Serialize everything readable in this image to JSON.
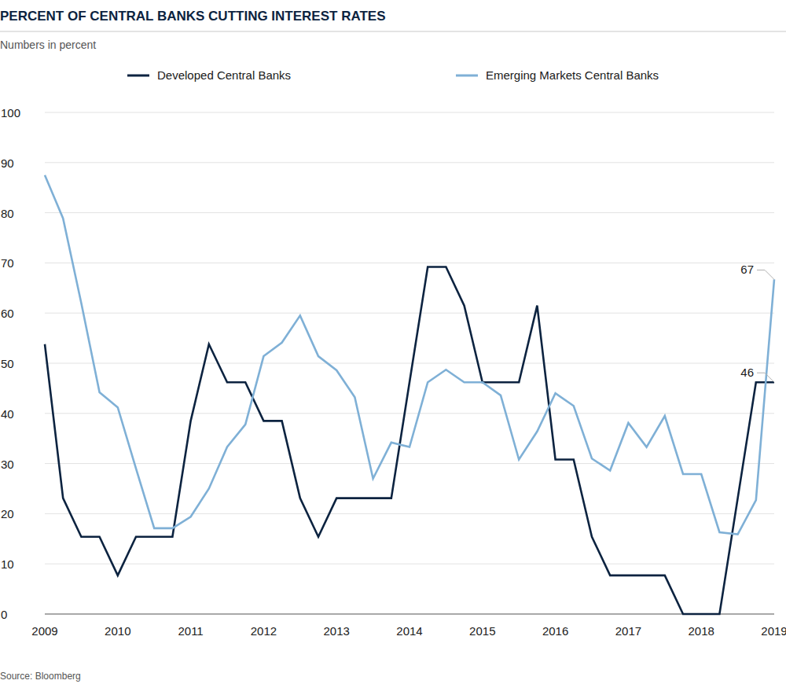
{
  "chart_data": {
    "type": "line",
    "title": "PERCENT OF CENTRAL BANKS CUTTING INTEREST RATES",
    "subtitle": "Numbers in percent",
    "source": "Source:  Bloomberg",
    "x": [
      2009,
      2009.25,
      2009.5,
      2009.75,
      2010,
      2010.25,
      2010.5,
      2010.75,
      2011,
      2011.25,
      2011.5,
      2011.75,
      2012,
      2012.25,
      2012.5,
      2012.75,
      2013,
      2013.25,
      2013.5,
      2013.75,
      2014,
      2014.25,
      2014.5,
      2014.75,
      2015,
      2015.25,
      2015.5,
      2015.75,
      2016,
      2016.25,
      2016.5,
      2016.75,
      2017,
      2017.25,
      2017.5,
      2017.75,
      2018,
      2018.25,
      2018.5,
      2018.75,
      2019
    ],
    "series": [
      {
        "name": "Developed Central Banks",
        "color": "#0c2340",
        "values": [
          53.8,
          23.1,
          15.4,
          15.4,
          7.7,
          15.4,
          15.4,
          15.4,
          38.5,
          53.8,
          46.2,
          46.2,
          38.5,
          38.5,
          23.1,
          15.4,
          23.1,
          23.1,
          23.1,
          23.1,
          46.2,
          69.2,
          69.2,
          61.5,
          46.2,
          46.2,
          46.2,
          61.5,
          30.8,
          30.8,
          15.4,
          7.7,
          7.7,
          7.7,
          7.7,
          0,
          0,
          0,
          23.1,
          46.2,
          46.2
        ]
      },
      {
        "name": "Emerging Markets Central Banks",
        "color": "#7fb0d6",
        "values": [
          87.5,
          78.9,
          62,
          44.2,
          41.2,
          29,
          17.1,
          17.1,
          19.4,
          25,
          33.3,
          37.8,
          51.4,
          54.1,
          59.5,
          51.4,
          48.6,
          43.2,
          27,
          34.2,
          33.3,
          46.2,
          48.7,
          46.2,
          46.2,
          43.6,
          30.8,
          36.4,
          44,
          41.5,
          31,
          28.6,
          38.1,
          33.3,
          39.5,
          27.9,
          27.9,
          16.3,
          15.9,
          22.7,
          66.7
        ]
      }
    ],
    "xlim": [
      2009,
      2019
    ],
    "xticks": [
      2009,
      2010,
      2011,
      2012,
      2013,
      2014,
      2015,
      2016,
      2017,
      2018,
      2019
    ],
    "ylim": [
      0,
      100
    ],
    "yticks": [
      0,
      10,
      20,
      30,
      40,
      50,
      60,
      70,
      80,
      90,
      100
    ],
    "grid": true,
    "legend": "top",
    "annotations": [
      {
        "text": "67",
        "x": 2019,
        "y": 66.7
      },
      {
        "text": "46",
        "x": 2019,
        "y": 46.2
      }
    ]
  }
}
